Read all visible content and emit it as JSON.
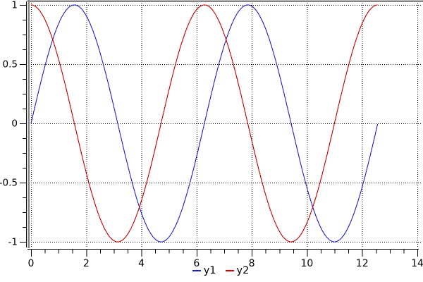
{
  "chart_data": {
    "type": "line",
    "title": "",
    "xlabel": "",
    "ylabel": "",
    "x_axis": {
      "min": 0,
      "max": 14,
      "major_ticks": [
        0,
        2,
        4,
        6,
        8,
        10,
        12,
        14
      ],
      "major_tick_labels": [
        "0",
        "2",
        "4",
        "6",
        "8",
        "10",
        "12",
        "14"
      ],
      "minor_tick_step": 0.5
    },
    "y_axis": {
      "min": -1,
      "max": 1,
      "major_ticks": [
        1,
        0.5,
        0,
        -0.5,
        -1
      ],
      "major_tick_labels": [
        "1",
        "0.5",
        "0",
        "-0.5",
        "-1"
      ],
      "minor_tick_step": 0.125
    },
    "grid": {
      "style": "dotted",
      "color": "#000000",
      "on_major_ticks_only": true
    },
    "series": [
      {
        "name": "y1",
        "function": "sin",
        "amplitude": 1,
        "period": 6.2832,
        "x_start": 0,
        "x_end": 12.566,
        "color": "#2222cc"
      },
      {
        "name": "y2",
        "function": "cos",
        "amplitude": 1,
        "period": 6.2832,
        "x_start": 0,
        "x_end": 12.566,
        "color": "#cc0000"
      }
    ],
    "legend_position": "bottom-center"
  },
  "style": {
    "plot_background": "#ffffff",
    "axis_box_color": "#848484",
    "ruler_color": "#000000",
    "tick_label_color": "#000000"
  }
}
